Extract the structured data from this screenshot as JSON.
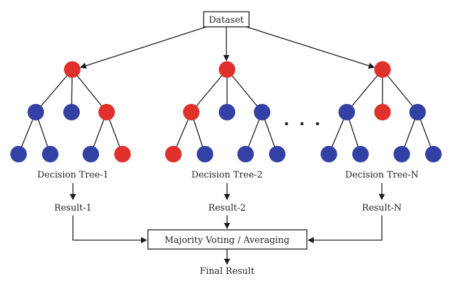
{
  "dataset_label": "Dataset",
  "aggregator_label": "Majority Voting / Averaging",
  "final_label": "Final Result",
  "ellipsis": "• • •",
  "colors": {
    "red_node": "#e0302b",
    "blue_node": "#3340a4",
    "ellipsis": "#d0259a",
    "line": "#1a1a1a"
  },
  "trees": [
    {
      "name": "Decision Tree-1",
      "result": "Result-1",
      "root": "red",
      "level2": [
        "blue",
        "blue",
        "red"
      ],
      "level3": [
        "blue",
        "blue",
        "blue",
        "red"
      ]
    },
    {
      "name": "Decision Tree-2",
      "result": "Result-2",
      "root": "red",
      "level2": [
        "red",
        "blue",
        "blue"
      ],
      "level3": [
        "red",
        "blue",
        "blue",
        "blue"
      ]
    },
    {
      "name": "Decision Tree-N",
      "result": "Result-N",
      "root": "red",
      "level2": [
        "blue",
        "red",
        "blue"
      ],
      "level3": [
        "blue",
        "blue",
        "blue",
        "blue"
      ]
    }
  ]
}
